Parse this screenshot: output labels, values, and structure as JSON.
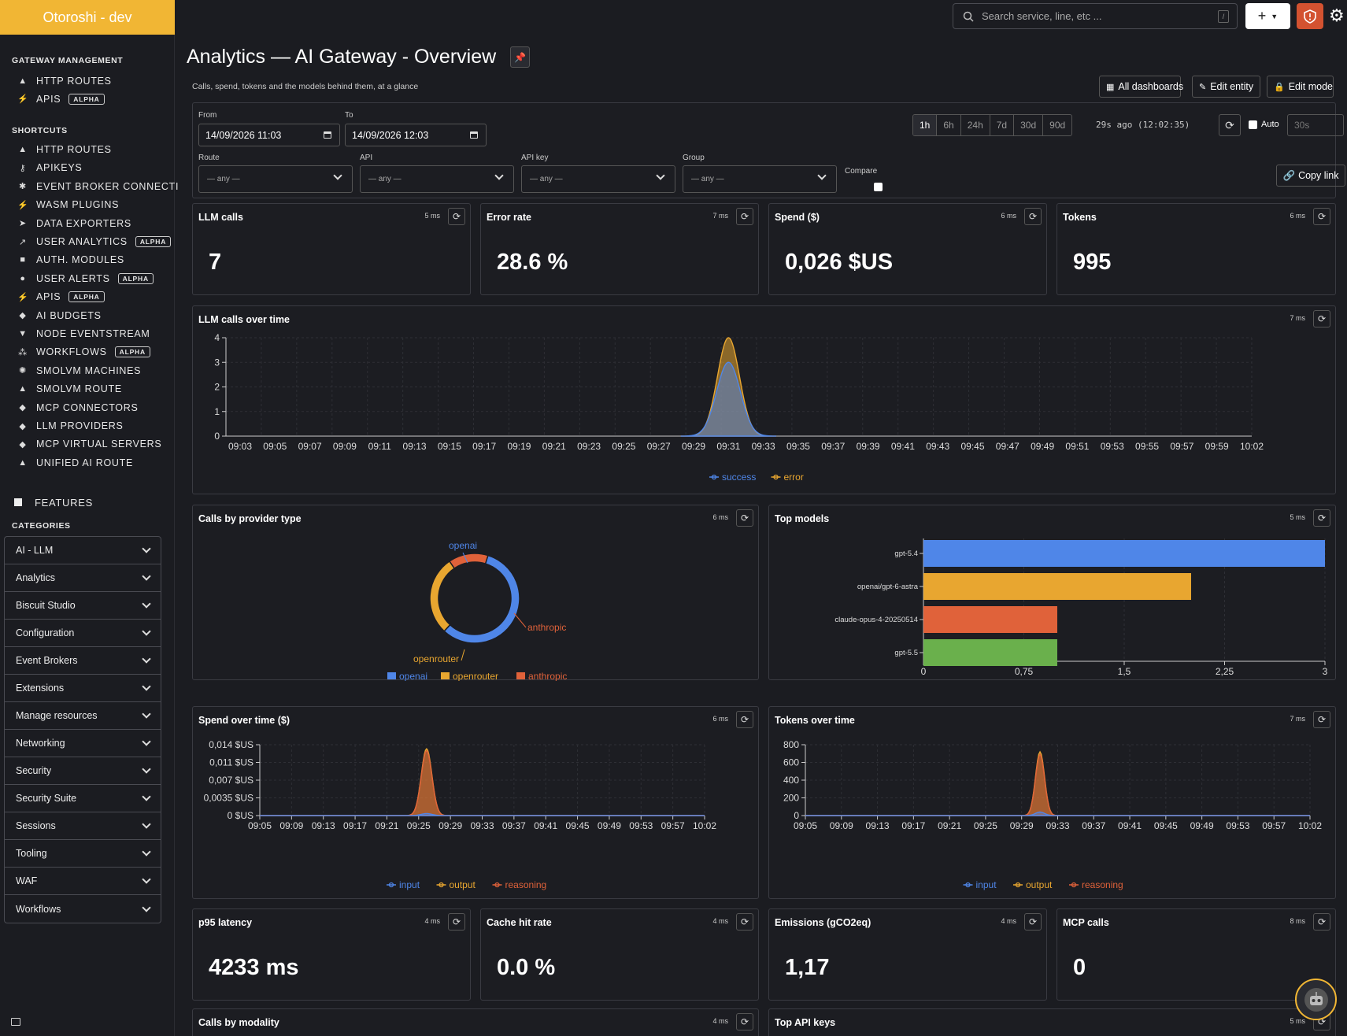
{
  "brand": "Otoroshi - dev",
  "topbar": {
    "search_placeholder": "Search service, line, etc ...",
    "search_shortcut": "/",
    "plus": "+"
  },
  "sidebar": {
    "gateway_title": "GATEWAY MANAGEMENT",
    "gateway_items": [
      {
        "label": "HTTP ROUTES",
        "icon": "road-icon",
        "badge": ""
      },
      {
        "label": "APIS",
        "icon": "plug-icon",
        "badge": "ALPHA"
      }
    ],
    "shortcuts_title": "SHORTCUTS",
    "shortcuts": [
      {
        "label": "HTTP ROUTES",
        "icon": "road-icon",
        "badge": ""
      },
      {
        "label": "APIKEYS",
        "icon": "key-icon",
        "badge": ""
      },
      {
        "label": "EVENT BROKER CONNECTI",
        "icon": "broker-icon",
        "badge": ""
      },
      {
        "label": "WASM PLUGINS",
        "icon": "plug-icon",
        "badge": ""
      },
      {
        "label": "DATA EXPORTERS",
        "icon": "paper-plane-icon",
        "badge": ""
      },
      {
        "label": "USER ANALYTICS",
        "icon": "chart-line-icon",
        "badge": "ALPHA"
      },
      {
        "label": "AUTH. MODULES",
        "icon": "lock-icon",
        "badge": ""
      },
      {
        "label": "USER ALERTS",
        "icon": "bell-icon",
        "badge": "ALPHA"
      },
      {
        "label": "APIS",
        "icon": "plug-icon",
        "badge": "ALPHA"
      },
      {
        "label": "AI BUDGETS",
        "icon": "brain-icon",
        "badge": ""
      },
      {
        "label": "NODE EVENTSTREAM",
        "icon": "filter-icon",
        "badge": ""
      },
      {
        "label": "WORKFLOWS",
        "icon": "sitemap-icon",
        "badge": "ALPHA"
      },
      {
        "label": "SMOLVM MACHINES",
        "icon": "gear-icon",
        "badge": ""
      },
      {
        "label": "SMOLVM ROUTE",
        "icon": "road-icon",
        "badge": ""
      },
      {
        "label": "MCP CONNECTORS",
        "icon": "brain-icon",
        "badge": ""
      },
      {
        "label": "LLM PROVIDERS",
        "icon": "brain-icon",
        "badge": ""
      },
      {
        "label": "MCP VIRTUAL SERVERS",
        "icon": "brain-icon",
        "badge": ""
      },
      {
        "label": "UNIFIED AI ROUTE",
        "icon": "road-icon",
        "badge": ""
      }
    ],
    "features_label": "FEATURES",
    "categories_title": "CATEGORIES",
    "categories": [
      "AI - LLM",
      "Analytics",
      "Biscuit Studio",
      "Configuration",
      "Event Brokers",
      "Extensions",
      "Manage resources",
      "Networking",
      "Security",
      "Security Suite",
      "Sessions",
      "Tooling",
      "WAF",
      "Workflows"
    ]
  },
  "page": {
    "title": "Analytics — AI Gateway - Overview",
    "subtitle": "Calls, spend, tokens and the models behind them, at a glance",
    "buttons": {
      "all_dashboards": "All dashboards",
      "edit_entity": "Edit entity",
      "edit_mode": "Edit mode"
    }
  },
  "filters": {
    "from_label": "From",
    "from_value": "14/09/2026 11:03",
    "to_label": "To",
    "to_value": "14/09/2026 12:03",
    "ranges": [
      "1h",
      "6h",
      "24h",
      "7d",
      "30d",
      "90d"
    ],
    "active_range": "1h",
    "last_refresh": "29s ago (12:02:35)",
    "auto_label": "Auto",
    "interval_placeholder": "30s",
    "route_label": "Route",
    "api_label": "API",
    "apikey_label": "API key",
    "group_label": "Group",
    "any": "— any —",
    "compare_label": "Compare",
    "copy_link": "Copy link"
  },
  "stats": [
    {
      "title": "LLM calls",
      "ms": "5 ms",
      "value": "7"
    },
    {
      "title": "Error rate",
      "ms": "7 ms",
      "value": "28.6 %"
    },
    {
      "title": "Spend ($)",
      "ms": "6 ms",
      "value": "0,026 $US"
    },
    {
      "title": "Tokens",
      "ms": "6 ms",
      "value": "995"
    }
  ],
  "stats2": [
    {
      "title": "p95 latency",
      "ms": "4 ms",
      "value": "4233 ms"
    },
    {
      "title": "Cache hit rate",
      "ms": "4 ms",
      "value": "0.0 %"
    },
    {
      "title": "Emissions (gCO2eq)",
      "ms": "4 ms",
      "value": "1,17"
    },
    {
      "title": "MCP calls",
      "ms": "8 ms",
      "value": "0"
    }
  ],
  "bottom_cards": [
    {
      "title": "Calls by modality",
      "ms": "4 ms"
    },
    {
      "title": "Top API keys",
      "ms": "5 ms"
    }
  ],
  "colors": {
    "blue": "#4f86e8",
    "orange": "#e8a630",
    "red": "#e0623a",
    "green": "#6ab04c",
    "brand": "#f1b634"
  },
  "chart_data": [
    {
      "id": "calls_over_time",
      "type": "area",
      "title": "LLM calls over time",
      "ms": "7 ms",
      "x": [
        "09:03",
        "09:05",
        "09:07",
        "09:09",
        "09:11",
        "09:13",
        "09:15",
        "09:17",
        "09:19",
        "09:21",
        "09:23",
        "09:25",
        "09:27",
        "09:29",
        "09:31",
        "09:33",
        "09:35",
        "09:37",
        "09:39",
        "09:41",
        "09:43",
        "09:45",
        "09:47",
        "09:49",
        "09:51",
        "09:53",
        "09:55",
        "09:57",
        "09:59",
        "10:02"
      ],
      "ylim": [
        0,
        4
      ],
      "yticks": [
        0,
        1,
        2,
        3,
        4
      ],
      "series": [
        {
          "name": "success",
          "color": "#4f86e8",
          "peak_x": "09:31",
          "peak": 3
        },
        {
          "name": "error",
          "color": "#e8a630",
          "peak_x": "09:31",
          "peak": 4
        }
      ]
    },
    {
      "id": "provider_type",
      "type": "pie",
      "title": "Calls by provider type",
      "ms": "6 ms",
      "slices": [
        {
          "label": "openai",
          "value": 4,
          "color": "#4f86e8"
        },
        {
          "label": "openrouter",
          "value": 2,
          "color": "#e8a630"
        },
        {
          "label": "anthropic",
          "value": 1,
          "color": "#e0623a"
        }
      ]
    },
    {
      "id": "top_models",
      "type": "bar",
      "title": "Top models",
      "ms": "5 ms",
      "orientation": "horizontal",
      "categories": [
        "gpt-5.4",
        "openai/gpt-6-astra",
        "claude-opus-4-20250514",
        "gpt-5.5"
      ],
      "values": [
        3,
        2,
        1,
        1
      ],
      "colors": [
        "#4f86e8",
        "#e8a630",
        "#e0623a",
        "#6ab04c"
      ],
      "xlim": [
        0,
        3
      ],
      "xticks": [
        "0",
        "0,75",
        "1,5",
        "2,25",
        "3"
      ]
    },
    {
      "id": "spend_over_time",
      "type": "area",
      "title": "Spend over time ($)",
      "ms": "6 ms",
      "x": [
        "09:05",
        "09:09",
        "09:13",
        "09:17",
        "09:21",
        "09:25",
        "09:29",
        "09:33",
        "09:37",
        "09:41",
        "09:45",
        "09:49",
        "09:53",
        "09:57",
        "10:02"
      ],
      "yticks": [
        "0 $US",
        "0,0035 $US",
        "0,007 $US",
        "0,011 $US",
        "0,014 $US"
      ],
      "ylim": [
        0,
        0.014
      ],
      "series": [
        {
          "name": "input",
          "color": "#4f86e8",
          "peak": 0.0004
        },
        {
          "name": "output",
          "color": "#e8a630",
          "peak": 0.0132
        },
        {
          "name": "reasoning",
          "color": "#e0623a",
          "peak": 0.0128
        }
      ]
    },
    {
      "id": "tokens_over_time",
      "type": "area",
      "title": "Tokens over time",
      "ms": "7 ms",
      "x": [
        "09:05",
        "09:09",
        "09:13",
        "09:17",
        "09:21",
        "09:25",
        "09:29",
        "09:33",
        "09:37",
        "09:41",
        "09:45",
        "09:49",
        "09:53",
        "09:57",
        "10:02"
      ],
      "yticks": [
        "0",
        "200",
        "400",
        "600",
        "800"
      ],
      "ylim": [
        0,
        800
      ],
      "series": [
        {
          "name": "input",
          "color": "#4f86e8",
          "peak": 40
        },
        {
          "name": "output",
          "color": "#e8a630",
          "peak": 720
        },
        {
          "name": "reasoning",
          "color": "#e0623a",
          "peak": 690
        }
      ]
    }
  ]
}
